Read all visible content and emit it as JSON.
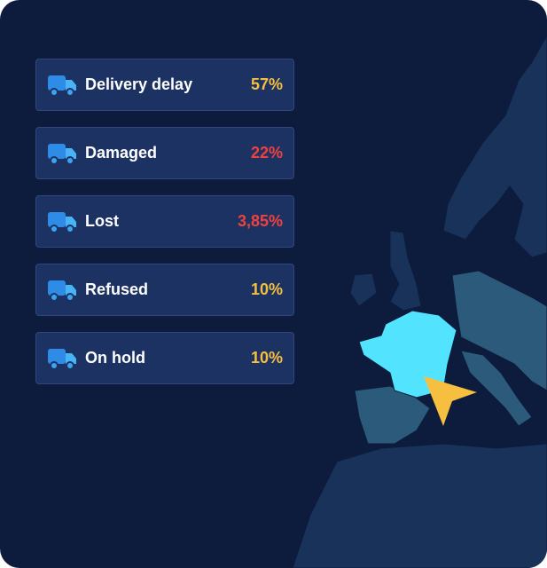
{
  "items": [
    {
      "label": "Delivery delay",
      "value": "57%"
    },
    {
      "label": "Damaged",
      "value": "22%"
    },
    {
      "label": "Lost",
      "value": "3,85%"
    },
    {
      "label": "Refused",
      "value": "10%"
    },
    {
      "label": "On hold",
      "value": "10%"
    }
  ]
}
